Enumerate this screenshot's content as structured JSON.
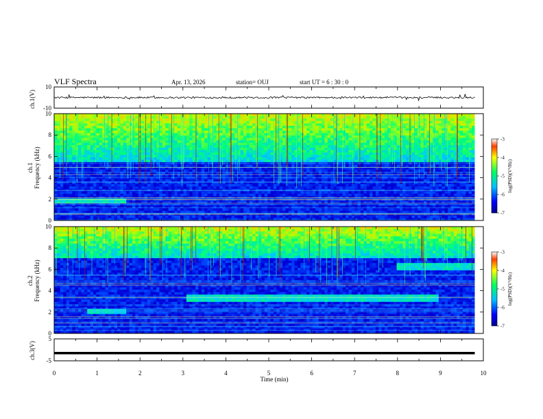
{
  "header": {
    "title": "VLF Spectra",
    "date": "Apr. 13, 2026",
    "station": "station= OUJ",
    "start": "start  UT  =   6  : 30 : 0"
  },
  "chart_data": {
    "type": "heatmap",
    "xlabel": "Time  (min)",
    "xlim": [
      0,
      10
    ],
    "xticks": [
      "0",
      "1",
      "2",
      "3",
      "4",
      "5",
      "6",
      "7",
      "8",
      "9",
      "10"
    ],
    "panels": [
      {
        "id": "ch1-waveform",
        "type": "line",
        "ylabel": "ch.1(V)",
        "ylim": [
          -10,
          10
        ],
        "yticks": [
          "10",
          "-10"
        ],
        "baseline": 0,
        "color": "#000000"
      },
      {
        "id": "ch1-spectrogram",
        "type": "heatmap",
        "ylabel": "Frequency  (kHz)",
        "ylabel_prefix": "ch.1",
        "ylim": [
          0,
          10
        ],
        "yticks": [
          "0",
          "2",
          "4",
          "6",
          "8",
          "10"
        ],
        "colorbar": {
          "label": "log(PSD)(V²/Hz)",
          "ticks": [
            "-3",
            "-4",
            "-5",
            "-6",
            "-7"
          ],
          "range": [
            -7,
            -3
          ]
        },
        "features": [
          {
            "name": "broadband spherics",
            "f_low_khz": 5.5,
            "f_high_khz": 10,
            "t_start_min": 0,
            "t_end_min": 9.8
          },
          {
            "name": "band",
            "f_low_khz": 1.5,
            "f_high_khz": 2.0,
            "t_start_min": 0,
            "t_end_min": 1.65
          }
        ]
      },
      {
        "id": "ch2-spectrogram",
        "type": "heatmap",
        "ylabel": "Frequency  (kHz)",
        "ylabel_prefix": "ch.2",
        "ylim": [
          0,
          10
        ],
        "yticks": [
          "0",
          "2",
          "4",
          "6",
          "8",
          "10"
        ],
        "colorbar": {
          "label": "log(PSD)(V²/Hz)",
          "ticks": [
            "-3",
            "-4",
            "-5",
            "-6",
            "-7"
          ],
          "range": [
            -7,
            -3
          ]
        },
        "features": [
          {
            "name": "broadband spherics",
            "f_low_khz": 7.0,
            "f_high_khz": 10,
            "t_start_min": 0,
            "t_end_min": 9.8
          },
          {
            "name": "band",
            "f_low_khz": 1.8,
            "f_high_khz": 2.2,
            "t_start_min": 0.75,
            "t_end_min": 1.65
          },
          {
            "name": "band",
            "f_low_khz": 3.0,
            "f_high_khz": 3.6,
            "t_start_min": 3.05,
            "t_end_min": 8.95
          },
          {
            "name": "band",
            "f_low_khz": 6.0,
            "f_high_khz": 6.5,
            "t_start_min": 8.0,
            "t_end_min": 9.8
          }
        ]
      },
      {
        "id": "ch3-waveform",
        "type": "line",
        "ylabel": "ch.3(V)",
        "ylim": [
          -5,
          5
        ],
        "yticks": [
          "5",
          "-5"
        ],
        "baseline": -1.5,
        "color": "#000000"
      }
    ],
    "data_end_min": 9.8
  }
}
